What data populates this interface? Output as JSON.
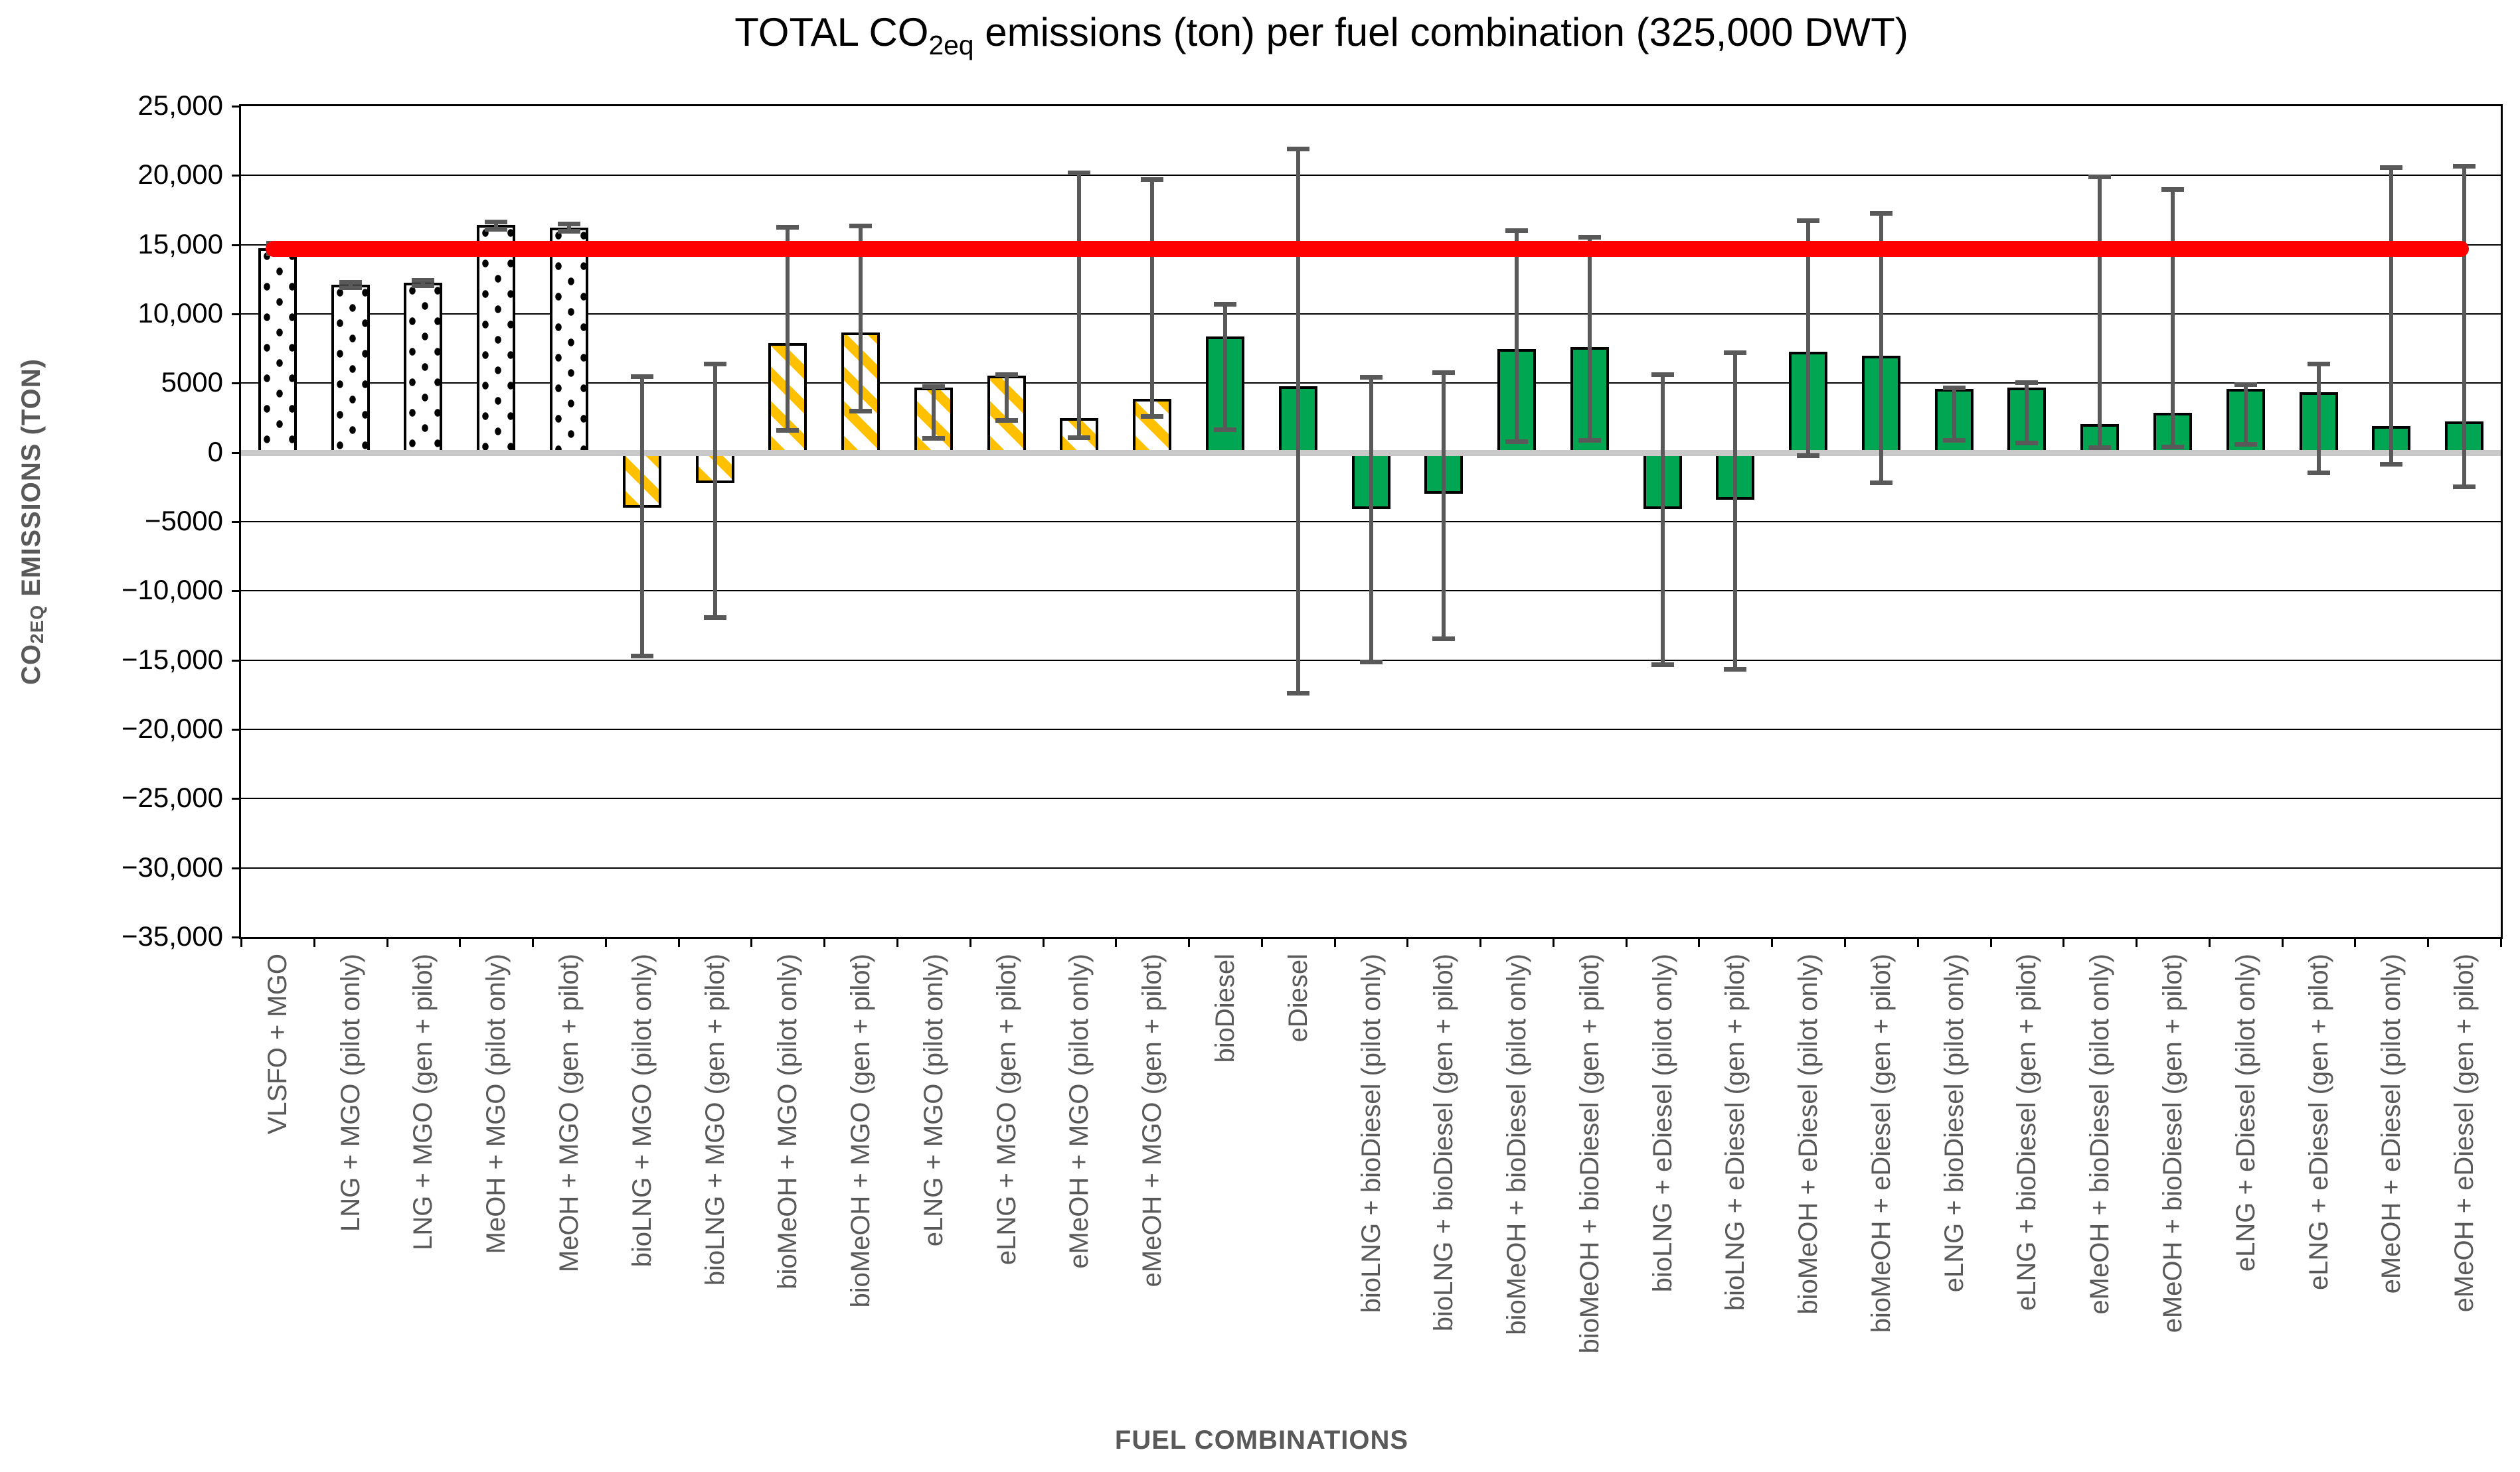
{
  "title": {
    "pre": "TOTAL CO",
    "sub": "2eq",
    "post": " emissions (ton) per fuel combination (325,000 DWT)"
  },
  "y_axis": {
    "label_pre": "CO",
    "label_sub": "2EQ",
    "label_post": " EMISSIONS (TON)",
    "ticks": [
      {
        "value": 25000,
        "label": "25,000"
      },
      {
        "value": 20000,
        "label": "20,000"
      },
      {
        "value": 15000,
        "label": "15,000"
      },
      {
        "value": 10000,
        "label": "10,000"
      },
      {
        "value": 5000,
        "label": "5000"
      },
      {
        "value": 0,
        "label": "0"
      },
      {
        "value": -5000,
        "label": "−5000"
      },
      {
        "value": -10000,
        "label": "−10,000"
      },
      {
        "value": -15000,
        "label": "−15,000"
      },
      {
        "value": -20000,
        "label": "−20,000"
      },
      {
        "value": -25000,
        "label": "−25,000"
      },
      {
        "value": -30000,
        "label": "−30,000"
      },
      {
        "value": -35000,
        "label": "−35,000"
      }
    ]
  },
  "x_axis": {
    "label": "FUEL COMBINATIONS"
  },
  "reference_line": {
    "value": 14700,
    "color": "#FF0000"
  },
  "colors": {
    "solid_bar_green": "#00A651",
    "stripe_yellow": "#FFC000",
    "reference_red": "#FE0000",
    "error_bar_gray": "#595959",
    "zero_line_gray": "#C9C9C9",
    "axis_text_gray": "#595959",
    "grid_black": "#000000"
  },
  "chart_data": {
    "type": "bar",
    "title": "TOTAL CO2eq emissions (ton) per fuel combination (325,000 DWT)",
    "xlabel": "FUEL COMBINATIONS",
    "ylabel": "CO2EQ EMISSIONS (TON)",
    "ylim": [
      -35000,
      25000
    ],
    "ytick_step": 5000,
    "grid": true,
    "legend": "none",
    "reference_line_y": 14700,
    "categories": [
      "VLSFO + MGO",
      "LNG + MGO (pilot only)",
      "LNG + MGO (gen + pilot)",
      "MeOH + MGO (pilot only)",
      "MeOH + MGO (gen + pilot)",
      "bioLNG + MGO (pilot only)",
      "bioLNG + MGO (gen + pilot)",
      "bioMeOH + MGO (pilot only)",
      "bioMeOH + MGO (gen + pilot)",
      "eLNG + MGO (pilot only)",
      "eLNG + MGO (gen + pilot)",
      "eMeOH + MGO (pilot only)",
      "eMeOH + MGO (gen + pilot)",
      "bioDiesel",
      "eDiesel",
      "bioLNG + bioDiesel (pilot only)",
      "bioLNG + bioDiesel (gen + pilot)",
      "bioMeOH + bioDiesel (pilot only)",
      "bioMeOH + bioDiesel (gen + pilot)",
      "bioLNG + eDiesel (pilot only)",
      "bioLNG + eDiesel (gen + pilot)",
      "bioMeOH + eDiesel (pilot only)",
      "bioMeOH + eDiesel (gen + pilot)",
      "eLNG + bioDiesel (pilot only)",
      "eLNG + bioDiesel (gen + pilot)",
      "eMeOH + bioDiesel (pilot only)",
      "eMeOH + bioDiesel (gen + pilot)",
      "eLNG + eDiesel (pilot only)",
      "eLNG + eDiesel (gen + pilot)",
      "eMeOH + eDiesel (pilot only)",
      "eMeOH + eDiesel (gen + pilot)"
    ],
    "values": [
      14750,
      12100,
      12250,
      16400,
      16250,
      -4000,
      -2200,
      7900,
      8650,
      4700,
      5550,
      2500,
      3850,
      8350,
      4800,
      -4100,
      -3000,
      7450,
      7600,
      -4100,
      -3400,
      7250,
      7000,
      4600,
      4700,
      2050,
      2850,
      4600,
      4350,
      1900,
      2250
    ],
    "error_low": [
      14350,
      11900,
      12050,
      16150,
      16000,
      -14700,
      -11900,
      1600,
      3000,
      1050,
      2350,
      1100,
      2600,
      1650,
      -17350,
      -15100,
      -13450,
      800,
      900,
      -15300,
      -15650,
      -200,
      -2150,
      900,
      700,
      350,
      400,
      600,
      -1450,
      -850,
      -2450
    ],
    "error_high": [
      15150,
      12300,
      12450,
      16650,
      16500,
      5500,
      6400,
      16300,
      16350,
      4800,
      5650,
      20200,
      19750,
      10700,
      21950,
      5450,
      5800,
      16050,
      15550,
      5650,
      7200,
      16750,
      17300,
      4700,
      5050,
      19900,
      19000,
      4900,
      6400,
      20600,
      20700
    ],
    "bar_styles": [
      "dotted",
      "dotted",
      "dotted",
      "dotted",
      "dotted",
      "striped",
      "striped",
      "striped",
      "striped",
      "striped",
      "striped",
      "striped",
      "striped",
      "solid",
      "solid",
      "solid",
      "solid",
      "solid",
      "solid",
      "solid",
      "solid",
      "solid",
      "solid",
      "solid",
      "solid",
      "solid",
      "solid",
      "solid",
      "solid",
      "solid",
      "solid"
    ]
  }
}
